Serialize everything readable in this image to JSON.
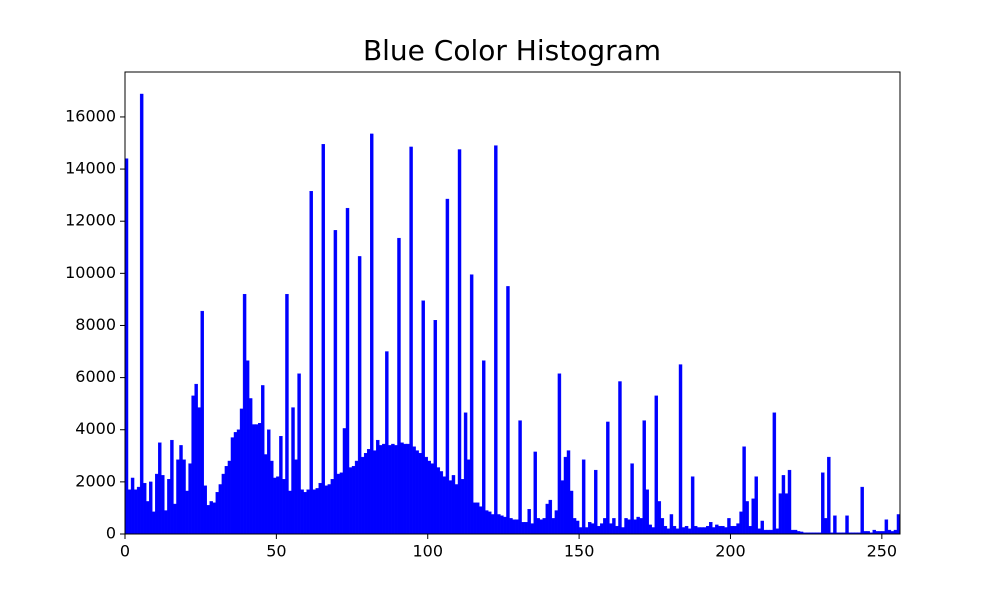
{
  "chart_data": {
    "type": "histogram",
    "title": "Blue Color Histogram",
    "color": "#0000ff",
    "bins": [
      0,
      1,
      2,
      3,
      4,
      5,
      6,
      7,
      8,
      9,
      10,
      11,
      12,
      13,
      14,
      15,
      16,
      17,
      18,
      19,
      20,
      21,
      22,
      23,
      24,
      25,
      26,
      27,
      28,
      29,
      30,
      31,
      32,
      33,
      34,
      35,
      36,
      37,
      38,
      39,
      40,
      41,
      42,
      43,
      44,
      45,
      46,
      47,
      48,
      49,
      50,
      51,
      52,
      53,
      54,
      55,
      56,
      57,
      58,
      59,
      60,
      61,
      62,
      63,
      64,
      65,
      66,
      67,
      68,
      69,
      70,
      71,
      72,
      73,
      74,
      75,
      76,
      77,
      78,
      79,
      80,
      81,
      82,
      83,
      84,
      85,
      86,
      87,
      88,
      89,
      90,
      91,
      92,
      93,
      94,
      95,
      96,
      97,
      98,
      99,
      100,
      101,
      102,
      103,
      104,
      105,
      106,
      107,
      108,
      109,
      110,
      111,
      112,
      113,
      114,
      115,
      116,
      117,
      118,
      119,
      120,
      121,
      122,
      123,
      124,
      125,
      126,
      127,
      128,
      129,
      130,
      131,
      132,
      133,
      134,
      135,
      136,
      137,
      138,
      139,
      140,
      141,
      142,
      143,
      144,
      145,
      146,
      147,
      148,
      149,
      150,
      151,
      152,
      153,
      154,
      155,
      156,
      157,
      158,
      159,
      160,
      161,
      162,
      163,
      164,
      165,
      166,
      167,
      168,
      169,
      170,
      171,
      172,
      173,
      174,
      175,
      176,
      177,
      178,
      179,
      180,
      181,
      182,
      183,
      184,
      185,
      186,
      187,
      188,
      189,
      190,
      191,
      192,
      193,
      194,
      195,
      196,
      197,
      198,
      199,
      200,
      201,
      202,
      203,
      204,
      205,
      206,
      207,
      208,
      209,
      210,
      211,
      212,
      213,
      214,
      215,
      216,
      217,
      218,
      219,
      220,
      221,
      222,
      223,
      224,
      225,
      226,
      227,
      228,
      229,
      230,
      231,
      232,
      233,
      234,
      235,
      236,
      237,
      238,
      239,
      240,
      241,
      242,
      243,
      244,
      245,
      246,
      247,
      248,
      249,
      250,
      251,
      252,
      253,
      254,
      255,
      256
    ],
    "counts": [
      14400,
      1700,
      2150,
      1700,
      1800,
      16880,
      1950,
      1250,
      2000,
      850,
      2300,
      3500,
      2250,
      900,
      2100,
      3600,
      1150,
      2850,
      3400,
      2850,
      1650,
      2700,
      5300,
      5750,
      4850,
      8550,
      1850,
      1100,
      1250,
      1200,
      1600,
      1900,
      2300,
      2600,
      2800,
      3700,
      3900,
      4000,
      4800,
      9200,
      6650,
      5200,
      4200,
      4200,
      4250,
      5700,
      3050,
      4000,
      2800,
      2150,
      2200,
      3750,
      2100,
      9200,
      1650,
      4850,
      2850,
      6150,
      1700,
      1600,
      1700,
      13150,
      1700,
      1750,
      1950,
      14950,
      1850,
      1900,
      2100,
      11650,
      2300,
      2350,
      4050,
      12500,
      2550,
      2600,
      2800,
      10650,
      2950,
      3100,
      3250,
      15350,
      3200,
      3600,
      3400,
      3450,
      7000,
      3400,
      3450,
      3400,
      11350,
      3500,
      3450,
      3450,
      14850,
      3350,
      3200,
      3100,
      8950,
      2950,
      2800,
      2700,
      8200,
      2550,
      2400,
      2200,
      12850,
      2050,
      2250,
      1900,
      14750,
      2100,
      4650,
      2850,
      9950,
      1200,
      1200,
      1050,
      6650,
      900,
      850,
      750,
      14900,
      750,
      700,
      650,
      9500,
      600,
      550,
      550,
      4350,
      450,
      450,
      950,
      400,
      3150,
      600,
      550,
      600,
      1150,
      1300,
      600,
      900,
      6150,
      2050,
      2950,
      3200,
      1650,
      600,
      500,
      250,
      2850,
      250,
      450,
      400,
      2450,
      300,
      400,
      600,
      4300,
      400,
      600,
      300,
      5850,
      250,
      600,
      550,
      2700,
      550,
      650,
      600,
      4350,
      1700,
      350,
      250,
      5300,
      1250,
      600,
      300,
      200,
      750,
      300,
      200,
      6500,
      250,
      300,
      200,
      2200,
      300,
      250,
      250,
      250,
      300,
      450,
      250,
      350,
      300,
      300,
      250,
      600,
      300,
      300,
      400,
      850,
      3350,
      1250,
      300,
      1350,
      2200,
      200,
      500,
      150,
      150,
      150,
      4650,
      200,
      1550,
      2250,
      1550,
      2450,
      150,
      150,
      100,
      80,
      50,
      50,
      50,
      50,
      50,
      50,
      2350,
      600,
      2950,
      50,
      700,
      50,
      50,
      50,
      700,
      50,
      50,
      50,
      50,
      1800,
      100,
      100,
      50,
      150,
      100,
      100,
      100,
      550,
      150,
      100,
      150,
      750
    ],
    "xlim": [
      0,
      256
    ],
    "xticks": [
      0,
      50,
      100,
      150,
      200,
      250
    ],
    "ylim": [
      0,
      17724
    ],
    "yticks": [
      0,
      2000,
      4000,
      6000,
      8000,
      10000,
      12000,
      14000,
      16000
    ]
  }
}
